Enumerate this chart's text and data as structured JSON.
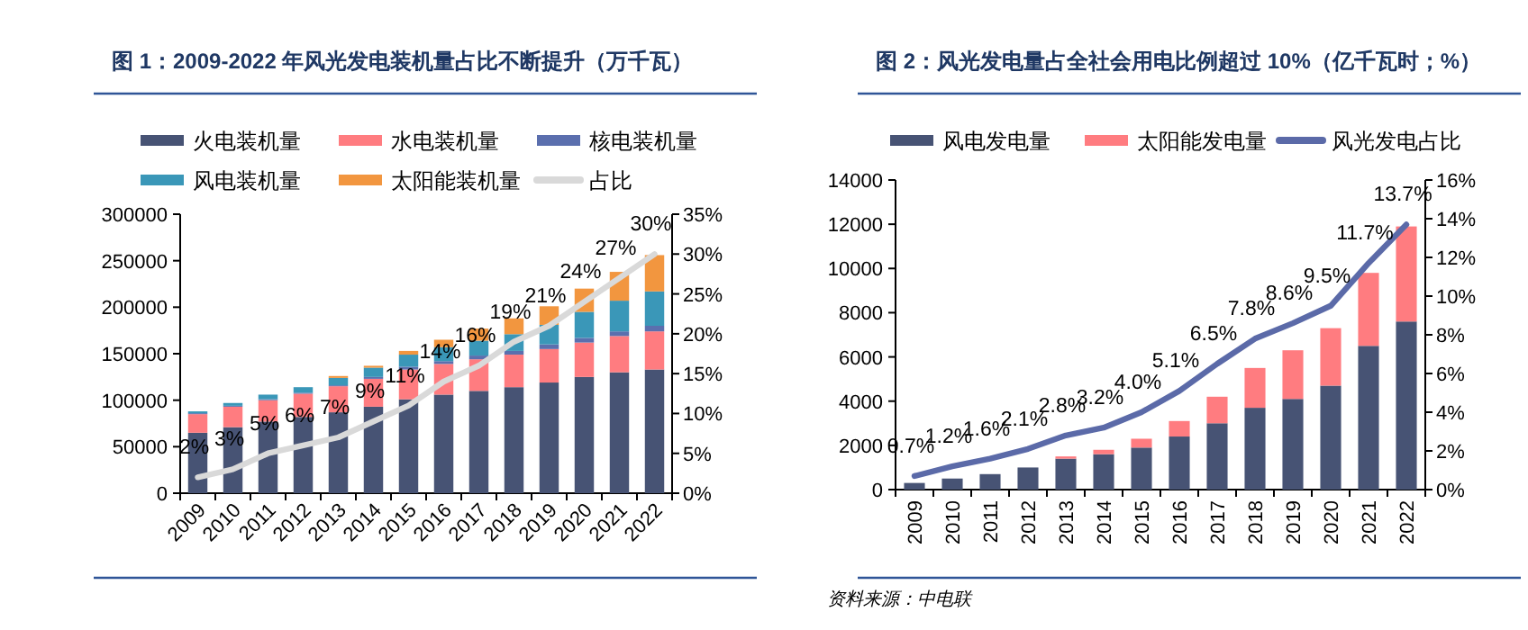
{
  "chart_data": [
    {
      "type": "bar",
      "title": "图 1：2009-2022 年风光发电装机量占比不断提升（万千瓦）",
      "stacked": true,
      "legend": "top",
      "categories": [
        "2009",
        "2010",
        "2011",
        "2012",
        "2013",
        "2014",
        "2015",
        "2016",
        "2017",
        "2018",
        "2019",
        "2020",
        "2021",
        "2022"
      ],
      "series": [
        {
          "name": "火电装机量",
          "color": "#475374",
          "values": [
            65000,
            71000,
            77000,
            82000,
            87000,
            93000,
            101000,
            106000,
            110000,
            114000,
            119000,
            125000,
            130000,
            133000
          ]
        },
        {
          "name": "水电装机量",
          "color": "#ff7c80",
          "values": [
            20000,
            22000,
            23000,
            25000,
            28000,
            30000,
            32000,
            33000,
            34000,
            35000,
            36000,
            37000,
            39000,
            41000
          ]
        },
        {
          "name": "核电装机量",
          "color": "#5b6fae",
          "values": [
            1000,
            1000,
            1000,
            1000,
            1000,
            2000,
            3000,
            3000,
            4000,
            4000,
            5000,
            5000,
            5000,
            6000
          ]
        },
        {
          "name": "风电装机量",
          "color": "#3a97b8",
          "values": [
            2000,
            3000,
            5000,
            6000,
            8000,
            10000,
            13000,
            15000,
            16000,
            18000,
            21000,
            28000,
            33000,
            37000
          ]
        },
        {
          "name": "太阳能装机量",
          "color": "#f2963f",
          "values": [
            0,
            0,
            0,
            0,
            2000,
            2000,
            4000,
            8000,
            13000,
            17000,
            20000,
            25000,
            31000,
            39000
          ]
        },
        {
          "name": "占比",
          "type": "line",
          "axis": "y2",
          "color": "#d9d9d9",
          "values": [
            2,
            3,
            5,
            6,
            7,
            9,
            11,
            14,
            16,
            19,
            21,
            24,
            27,
            30
          ],
          "value_labels": [
            "2%",
            "3%",
            "5%",
            "6%",
            "7%",
            "9%",
            "11%",
            "14%",
            "16%",
            "19%",
            "21%",
            "24%",
            "27%",
            "30%"
          ]
        }
      ],
      "ylim": [
        0,
        300000
      ],
      "yticks": [
        0,
        50000,
        100000,
        150000,
        200000,
        250000,
        300000
      ],
      "y2lim": [
        0,
        35
      ],
      "y2ticks": [
        {
          "value": 0,
          "label": "0%"
        },
        {
          "value": 5,
          "label": "5%"
        },
        {
          "value": 10,
          "label": "10%"
        },
        {
          "value": 15,
          "label": "15%"
        },
        {
          "value": 20,
          "label": "20%"
        },
        {
          "value": 25,
          "label": "25%"
        },
        {
          "value": 30,
          "label": "30%"
        },
        {
          "value": 35,
          "label": "35%"
        }
      ]
    },
    {
      "type": "bar",
      "title": "图 2：风光发电量占全社会用电比例超过 10%（亿千瓦时；%）",
      "stacked": true,
      "legend": "top",
      "categories": [
        "2009",
        "2010",
        "2011",
        "2012",
        "2013",
        "2014",
        "2015",
        "2016",
        "2017",
        "2018",
        "2019",
        "2020",
        "2021",
        "2022"
      ],
      "series": [
        {
          "name": "风电发电量",
          "color": "#475374",
          "values": [
            300,
            500,
            700,
            1000,
            1400,
            1600,
            1900,
            2400,
            3000,
            3700,
            4100,
            4700,
            6500,
            7600
          ]
        },
        {
          "name": "太阳能发电量",
          "color": "#ff7c80",
          "values": [
            0,
            0,
            0,
            0,
            100,
            200,
            400,
            700,
            1200,
            1800,
            2200,
            2600,
            3300,
            4300
          ]
        },
        {
          "name": "风光发电占比",
          "type": "line",
          "axis": "y2",
          "color": "#5b6aa8",
          "values": [
            0.7,
            1.2,
            1.6,
            2.1,
            2.8,
            3.2,
            4.0,
            5.1,
            6.5,
            7.8,
            8.6,
            9.5,
            11.7,
            13.7
          ],
          "value_labels": [
            "0.7%",
            "1.2%",
            "1.6%",
            "2.1%",
            "2.8%",
            "3.2%",
            "4.0%",
            "5.1%",
            "6.5%",
            "7.8%",
            "8.6%",
            "9.5%",
            "11.7%",
            "13.7%"
          ]
        }
      ],
      "ylim": [
        0,
        14000
      ],
      "yticks": [
        0,
        2000,
        4000,
        6000,
        8000,
        10000,
        12000,
        14000
      ],
      "y2lim": [
        0,
        16
      ],
      "y2ticks": [
        {
          "value": 0,
          "label": "0%"
        },
        {
          "value": 2,
          "label": "2%"
        },
        {
          "value": 4,
          "label": "4%"
        },
        {
          "value": 6,
          "label": "6%"
        },
        {
          "value": 8,
          "label": "8%"
        },
        {
          "value": 10,
          "label": "10%"
        },
        {
          "value": 12,
          "label": "12%"
        },
        {
          "value": 14,
          "label": "14%"
        },
        {
          "value": 16,
          "label": "16%"
        }
      ],
      "annotations": [
        "资料来源：中电联"
      ]
    }
  ]
}
